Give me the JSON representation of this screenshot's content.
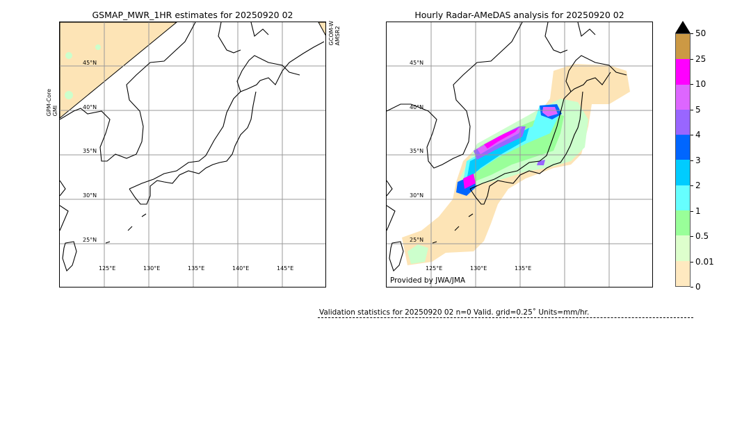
{
  "left_panel": {
    "title": "GSMAP_MWR_1HR estimates for 20250920 02",
    "side_label_left": [
      "GPM-Core",
      "GMI"
    ],
    "side_label_right": [
      "GCOM-W",
      "AMSR2"
    ],
    "lat_labels": [
      "45°N",
      "40°N",
      "35°N",
      "30°N",
      "25°N"
    ],
    "lon_labels": [
      "125°E",
      "130°E",
      "135°E",
      "140°E",
      "145°E"
    ],
    "swath_color": "#fde4b6"
  },
  "right_panel": {
    "title": "Hourly Radar-AMeDAS analysis for 20250920 02",
    "lat_labels": [
      "45°N",
      "40°N",
      "35°N",
      "30°N",
      "25°N"
    ],
    "lon_labels": [
      "125°E",
      "130°E",
      "135°E"
    ],
    "credit": "Provided by JWA/JMA"
  },
  "colorbar": {
    "labels": [
      "50",
      "25",
      "10",
      "5",
      "4",
      "3",
      "2",
      "1",
      "0.5",
      "0.01",
      "0"
    ],
    "colors_top_to_bottom": [
      "#cc9944",
      "#ff00ff",
      "#dd66ff",
      "#9966ff",
      "#0066ff",
      "#00ccff",
      "#66ffff",
      "#99ff99",
      "#ddffcc",
      "#ffe9c0"
    ],
    "extend_arrow_color": "#000000"
  },
  "validation": {
    "text": "Validation statistics for 20250920 02  n=0 Valid. grid=0.25˚ Units=mm/hr."
  }
}
